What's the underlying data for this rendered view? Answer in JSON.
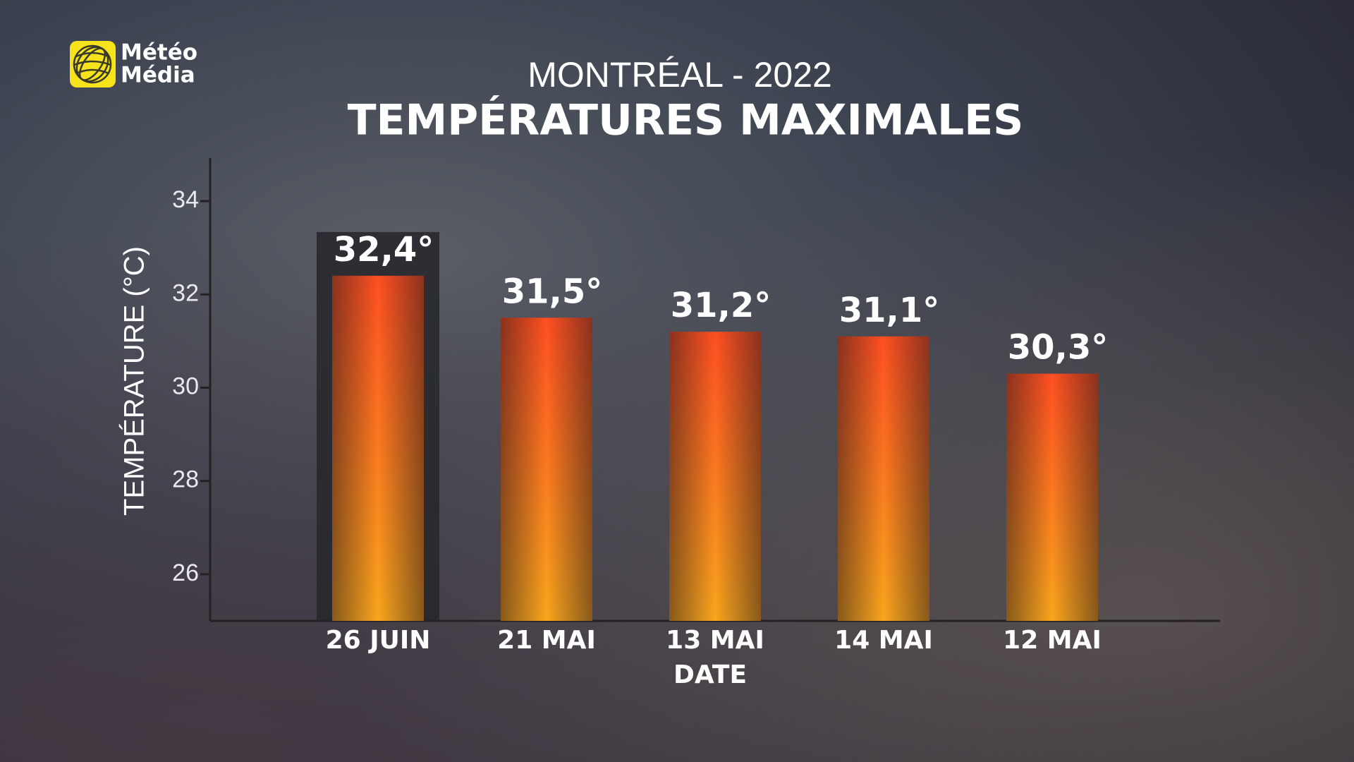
{
  "chart_data": {
    "type": "bar",
    "logo": [
      "Météo",
      "Média"
    ],
    "title": "MONTRÉAL - 2022",
    "subtitle": "TEMPÉRATURES MAXIMALES",
    "y_label": "TEMPÉRATURE (°C)",
    "x_label": "DATE",
    "categories": [
      "26 JUIN",
      "21 MAI",
      "13 MAI",
      "14 MAI",
      "12 MAI"
    ],
    "values": [
      32.4,
      31.5,
      31.2,
      31.1,
      30.3
    ],
    "value_labels": [
      "32,4°",
      "31,5°",
      "31,2°",
      "31,1°",
      "30,3°"
    ],
    "color": [
      "#ff4f22",
      "#f9a61c"
    ],
    "highlight": 0,
    "ylim": [
      25,
      35
    ],
    "yticks": [
      26,
      28,
      30,
      32,
      34
    ],
    "grid": false
  }
}
